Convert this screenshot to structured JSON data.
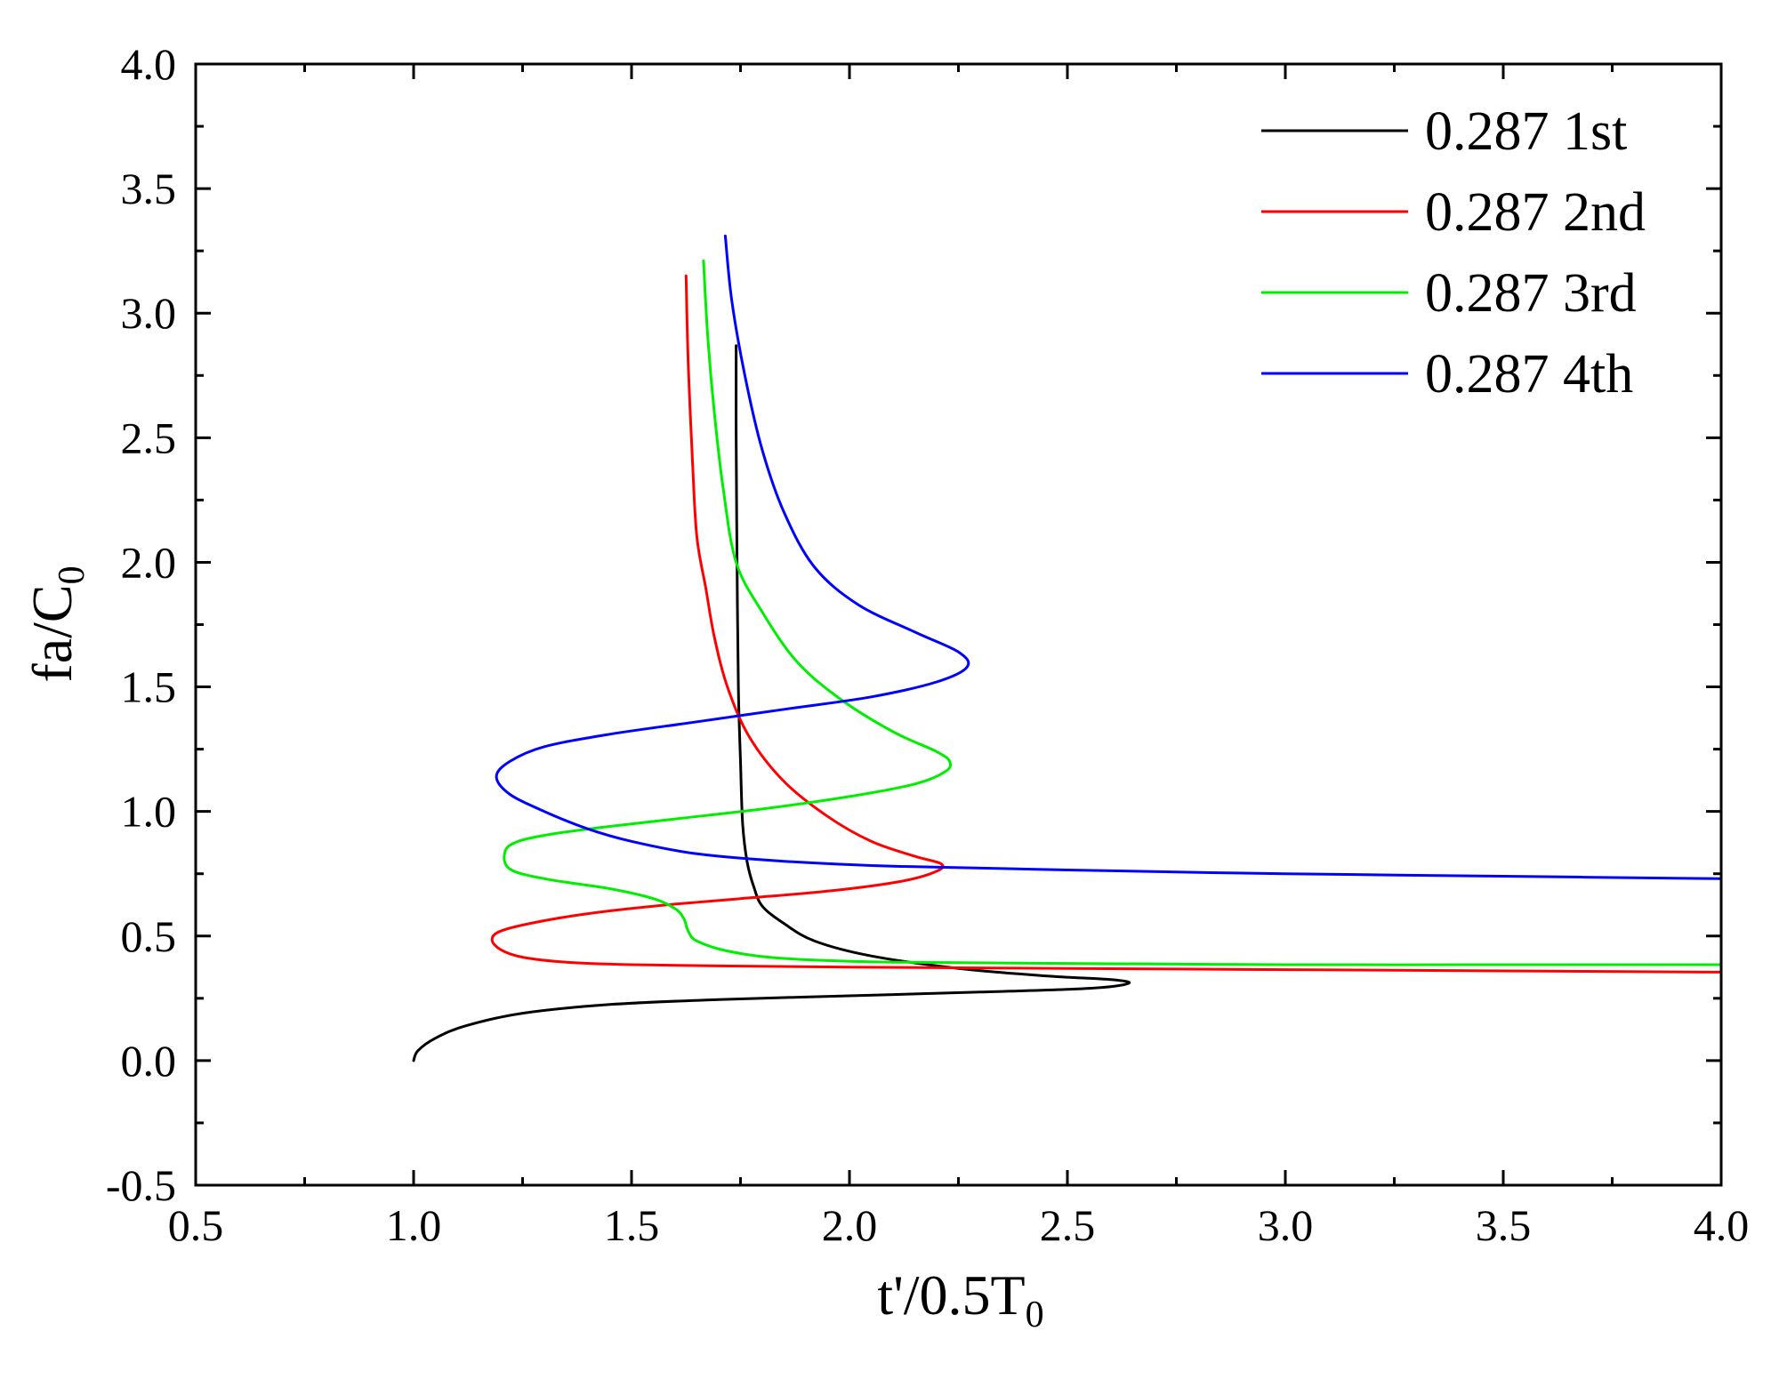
{
  "chart_data": {
    "type": "line",
    "title": "",
    "xlabel": {
      "main": "t'/0.5T",
      "sub": "0"
    },
    "ylabel": {
      "main": "fa/C",
      "sub": "0"
    },
    "xlim": [
      0.5,
      4.0
    ],
    "ylim": [
      -0.5,
      4.0
    ],
    "xticks": [
      0.5,
      1.0,
      1.5,
      2.0,
      2.5,
      3.0,
      3.5,
      4.0
    ],
    "yticks": [
      -0.5,
      0.0,
      0.5,
      1.0,
      1.5,
      2.0,
      2.5,
      3.0,
      3.5,
      4.0
    ],
    "xtick_labels": [
      "0.5",
      "1.0",
      "1.5",
      "2.0",
      "2.5",
      "3.0",
      "3.5",
      "4.0"
    ],
    "ytick_labels": [
      "-0.5",
      "0.0",
      "0.5",
      "1.0",
      "1.5",
      "2.0",
      "2.5",
      "3.0",
      "3.5",
      "4.0"
    ],
    "grid": false,
    "legend_position": "top-right",
    "series": [
      {
        "name": "0.287 1st",
        "color": "#000000",
        "points": [
          [
            1.0,
            0.0
          ],
          [
            1.01,
            0.04
          ],
          [
            1.05,
            0.09
          ],
          [
            1.12,
            0.14
          ],
          [
            1.25,
            0.19
          ],
          [
            1.45,
            0.225
          ],
          [
            1.7,
            0.245
          ],
          [
            2.0,
            0.26
          ],
          [
            2.3,
            0.275
          ],
          [
            2.55,
            0.29
          ],
          [
            2.64,
            0.31
          ],
          [
            2.6,
            0.325
          ],
          [
            2.45,
            0.34
          ],
          [
            2.25,
            0.37
          ],
          [
            2.05,
            0.42
          ],
          [
            1.92,
            0.48
          ],
          [
            1.85,
            0.55
          ],
          [
            1.8,
            0.62
          ],
          [
            1.78,
            0.7
          ],
          [
            1.765,
            0.8
          ],
          [
            1.755,
            0.95
          ],
          [
            1.75,
            1.2
          ],
          [
            1.745,
            1.5
          ],
          [
            1.742,
            2.0
          ],
          [
            1.74,
            2.5
          ],
          [
            1.74,
            2.87
          ]
        ]
      },
      {
        "name": "0.287 2nd",
        "color": "#ff0000",
        "points": [
          [
            4.0,
            0.355
          ],
          [
            3.5,
            0.36
          ],
          [
            3.0,
            0.365
          ],
          [
            2.5,
            0.37
          ],
          [
            2.0,
            0.375
          ],
          [
            1.7,
            0.38
          ],
          [
            1.5,
            0.385
          ],
          [
            1.35,
            0.395
          ],
          [
            1.25,
            0.415
          ],
          [
            1.2,
            0.445
          ],
          [
            1.18,
            0.485
          ],
          [
            1.2,
            0.52
          ],
          [
            1.28,
            0.555
          ],
          [
            1.4,
            0.59
          ],
          [
            1.55,
            0.62
          ],
          [
            1.75,
            0.65
          ],
          [
            1.95,
            0.68
          ],
          [
            2.12,
            0.72
          ],
          [
            2.2,
            0.76
          ],
          [
            2.21,
            0.79
          ],
          [
            2.15,
            0.82
          ],
          [
            2.05,
            0.88
          ],
          [
            1.95,
            0.98
          ],
          [
            1.85,
            1.12
          ],
          [
            1.77,
            1.3
          ],
          [
            1.72,
            1.5
          ],
          [
            1.69,
            1.7
          ],
          [
            1.67,
            1.9
          ],
          [
            1.65,
            2.1
          ],
          [
            1.64,
            2.4
          ],
          [
            1.63,
            2.8
          ],
          [
            1.625,
            3.15
          ]
        ]
      },
      {
        "name": "0.287 3rd",
        "color": "#00ee00",
        "points": [
          [
            4.0,
            0.385
          ],
          [
            3.5,
            0.385
          ],
          [
            3.0,
            0.385
          ],
          [
            2.5,
            0.39
          ],
          [
            2.1,
            0.395
          ],
          [
            1.85,
            0.41
          ],
          [
            1.72,
            0.44
          ],
          [
            1.65,
            0.48
          ],
          [
            1.63,
            0.52
          ],
          [
            1.62,
            0.57
          ],
          [
            1.6,
            0.61
          ],
          [
            1.55,
            0.65
          ],
          [
            1.45,
            0.69
          ],
          [
            1.3,
            0.73
          ],
          [
            1.22,
            0.77
          ],
          [
            1.21,
            0.84
          ],
          [
            1.24,
            0.88
          ],
          [
            1.32,
            0.91
          ],
          [
            1.45,
            0.94
          ],
          [
            1.6,
            0.97
          ],
          [
            1.8,
            1.01
          ],
          [
            2.0,
            1.06
          ],
          [
            2.15,
            1.11
          ],
          [
            2.22,
            1.16
          ],
          [
            2.23,
            1.2
          ],
          [
            2.2,
            1.24
          ],
          [
            2.1,
            1.32
          ],
          [
            1.98,
            1.45
          ],
          [
            1.88,
            1.6
          ],
          [
            1.8,
            1.8
          ],
          [
            1.74,
            2.0
          ],
          [
            1.71,
            2.3
          ],
          [
            1.69,
            2.6
          ],
          [
            1.675,
            2.9
          ],
          [
            1.665,
            3.21
          ]
        ]
      },
      {
        "name": "0.287 4th",
        "color": "#0000ff",
        "points": [
          [
            4.0,
            0.73
          ],
          [
            3.5,
            0.74
          ],
          [
            3.0,
            0.75
          ],
          [
            2.5,
            0.765
          ],
          [
            2.1,
            0.78
          ],
          [
            1.85,
            0.8
          ],
          [
            1.65,
            0.83
          ],
          [
            1.5,
            0.88
          ],
          [
            1.4,
            0.93
          ],
          [
            1.3,
            1.0
          ],
          [
            1.22,
            1.07
          ],
          [
            1.19,
            1.14
          ],
          [
            1.22,
            1.2
          ],
          [
            1.3,
            1.26
          ],
          [
            1.45,
            1.31
          ],
          [
            1.65,
            1.36
          ],
          [
            1.85,
            1.41
          ],
          [
            2.05,
            1.46
          ],
          [
            2.2,
            1.52
          ],
          [
            2.27,
            1.58
          ],
          [
            2.25,
            1.64
          ],
          [
            2.15,
            1.72
          ],
          [
            2.02,
            1.83
          ],
          [
            1.92,
            1.98
          ],
          [
            1.85,
            2.2
          ],
          [
            1.8,
            2.45
          ],
          [
            1.76,
            2.75
          ],
          [
            1.73,
            3.05
          ],
          [
            1.715,
            3.31
          ]
        ]
      }
    ]
  }
}
